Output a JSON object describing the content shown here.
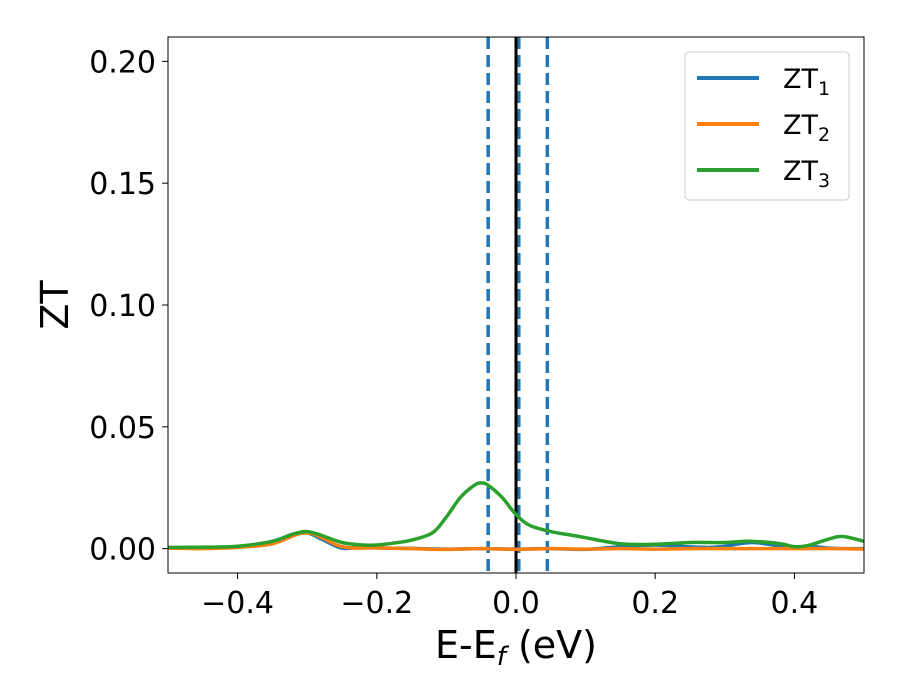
{
  "chart_data": {
    "type": "line",
    "xlabel": "E-E",
    "xlabel_sub": "f",
    "xlabel_unit": " (eV)",
    "ylabel": "ZT",
    "xlim": [
      -0.5,
      0.5
    ],
    "ylim": [
      -0.01,
      0.21
    ],
    "xticks": [
      -0.4,
      -0.2,
      0.0,
      0.2,
      0.4
    ],
    "xtick_labels": [
      "−0.4",
      "−0.2",
      "0.0",
      "0.2",
      "0.4"
    ],
    "yticks": [
      0.0,
      0.05,
      0.1,
      0.15,
      0.2
    ],
    "ytick_labels": [
      "0.00",
      "0.05",
      "0.10",
      "0.15",
      "0.20"
    ],
    "grid": false,
    "legend_position": "top-right",
    "vertical_lines": [
      {
        "x": -0.04,
        "style": "dashed",
        "color": "#1f77b4"
      },
      {
        "x": 0.004,
        "style": "dashed",
        "color": "#1f77b4"
      },
      {
        "x": 0.045,
        "style": "dashed",
        "color": "#1f77b4"
      },
      {
        "x": 0.0,
        "style": "solid",
        "color": "#000000"
      }
    ],
    "series": [
      {
        "name": "ZT",
        "subscript": "1",
        "color": "#1f77b4",
        "x": [
          -0.5,
          -0.45,
          -0.4,
          -0.35,
          -0.32,
          -0.3,
          -0.28,
          -0.25,
          -0.22,
          -0.2,
          -0.15,
          -0.1,
          -0.05,
          0.0,
          0.05,
          0.1,
          0.15,
          0.2,
          0.25,
          0.28,
          0.3,
          0.34,
          0.38,
          0.4,
          0.42,
          0.45,
          0.47,
          0.5
        ],
        "y": [
          0.0003,
          0.0004,
          0.0008,
          0.003,
          0.006,
          0.0065,
          0.004,
          0.0002,
          0.0008,
          0.0003,
          0.0001,
          -0.0002,
          0.0,
          -0.0002,
          0.0,
          -0.0003,
          0.0008,
          0.0015,
          0.0007,
          0.0005,
          0.001,
          0.0025,
          0.001,
          0.0005,
          0.001,
          0.0002,
          0.0,
          0.0
        ]
      },
      {
        "name": "ZT",
        "subscript": "2",
        "color": "#ff7f0e",
        "x": [
          -0.5,
          -0.45,
          -0.4,
          -0.35,
          -0.3,
          -0.25,
          -0.2,
          -0.15,
          -0.1,
          -0.05,
          0.0,
          0.05,
          0.1,
          0.15,
          0.2,
          0.25,
          0.3,
          0.35,
          0.4,
          0.45,
          0.5
        ],
        "y": [
          0.0002,
          0.0,
          0.0005,
          0.002,
          0.0065,
          0.0008,
          0.0003,
          0.0,
          -0.0003,
          0.0,
          -0.0003,
          0.0,
          -0.0002,
          0.0,
          -0.0002,
          0.0,
          0.0,
          0.0,
          0.0,
          0.0,
          -0.0002
        ]
      },
      {
        "name": "ZT",
        "subscript": "3",
        "color": "#2ca02c",
        "x": [
          -0.5,
          -0.45,
          -0.4,
          -0.35,
          -0.32,
          -0.3,
          -0.28,
          -0.25,
          -0.22,
          -0.2,
          -0.17,
          -0.15,
          -0.12,
          -0.1,
          -0.08,
          -0.06,
          -0.05,
          -0.04,
          -0.02,
          0.0,
          0.02,
          0.05,
          0.08,
          0.1,
          0.15,
          0.2,
          0.25,
          0.28,
          0.3,
          0.34,
          0.38,
          0.4,
          0.42,
          0.45,
          0.47,
          0.5
        ],
        "y": [
          0.0005,
          0.0006,
          0.001,
          0.003,
          0.006,
          0.007,
          0.0055,
          0.0025,
          0.0015,
          0.0015,
          0.0025,
          0.0035,
          0.0065,
          0.013,
          0.021,
          0.026,
          0.027,
          0.026,
          0.021,
          0.014,
          0.0095,
          0.007,
          0.0055,
          0.0045,
          0.002,
          0.0018,
          0.0025,
          0.0025,
          0.0025,
          0.003,
          0.002,
          0.0008,
          0.0013,
          0.004,
          0.005,
          0.003
        ]
      }
    ]
  }
}
